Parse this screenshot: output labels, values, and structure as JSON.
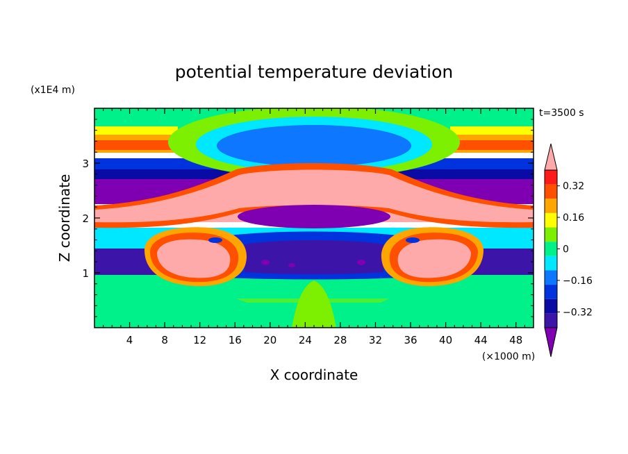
{
  "chart_data": {
    "type": "heatmap",
    "title": "potential temperature deviation",
    "xlabel": "X coordinate",
    "ylabel": "Z coordinate",
    "x_unit": "(×1000 m)",
    "y_unit": "(x1E4 m)",
    "time_label": "t=3500 s",
    "xlim": [
      0,
      50
    ],
    "ylim": [
      0,
      4
    ],
    "x_ticks": [
      4,
      8,
      12,
      16,
      20,
      24,
      28,
      32,
      36,
      40,
      44,
      48
    ],
    "y_ticks": [
      1,
      2,
      3
    ],
    "colorbar": {
      "levels": [
        -0.48,
        -0.4,
        -0.32,
        -0.24,
        -0.16,
        -0.08,
        0,
        0.08,
        0.16,
        0.24,
        0.32,
        0.4
      ],
      "colors": [
        "#7f00b2",
        "#3d14a8",
        "#0a0aa5",
        "#0033dd",
        "#0d77ff",
        "#00e8ff",
        "#00f08a",
        "#7cf000",
        "#ffff00",
        "#ffa500",
        "#ff5000",
        "#ff1a1a",
        "#ffaaaa"
      ],
      "tick_labels": [
        "0.32",
        "0.16",
        "0",
        "−0.16",
        "−0.32"
      ],
      "tick_values": [
        0.32,
        0.16,
        0,
        -0.16,
        -0.32
      ],
      "extend": "both"
    }
  }
}
